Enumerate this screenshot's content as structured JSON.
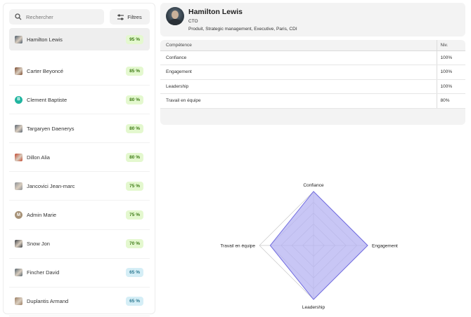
{
  "search": {
    "placeholder": "Rechercher"
  },
  "filter": {
    "label": "Filtres"
  },
  "people": [
    {
      "name": "Hamilton Lewis",
      "score": "95 %",
      "tone": "green",
      "avatar": "photo",
      "color": "#4a5a6a",
      "selected": true
    },
    {
      "name": "Carter Beyoncé",
      "score": "85 %",
      "tone": "green",
      "avatar": "photo",
      "color": "#7a4a2e"
    },
    {
      "name": "Clement Baptiste",
      "score": "80 %",
      "tone": "green",
      "avatar": "B",
      "color": "#21b5a0"
    },
    {
      "name": "Targaryen Daenerys",
      "score": "80 %",
      "tone": "green",
      "avatar": "photo",
      "color": "#5a6572"
    },
    {
      "name": "Dillon Alia",
      "score": "80 %",
      "tone": "green",
      "avatar": "photo",
      "color": "#c2462c"
    },
    {
      "name": "Jancovici Jean-marc",
      "score": "75 %",
      "tone": "green",
      "avatar": "photo",
      "color": "#8a8f95"
    },
    {
      "name": "Admin Marie",
      "score": "75 %",
      "tone": "green",
      "avatar": "M",
      "color": "#a79277"
    },
    {
      "name": "Snow Jon",
      "score": "70 %",
      "tone": "green",
      "avatar": "photo",
      "color": "#3a3e44"
    },
    {
      "name": "Fincher David",
      "score": "65 %",
      "tone": "blue",
      "avatar": "photo",
      "color": "#55646e"
    },
    {
      "name": "Duplantis Armand",
      "score": "65 %",
      "tone": "blue",
      "avatar": "photo",
      "color": "#9a7d62"
    }
  ],
  "profile": {
    "name": "Hamilton Lewis",
    "role": "CTO",
    "tags": "Produit, Strategic management, Executive, Paris, CDI"
  },
  "skills": {
    "header_skill": "Compétence",
    "header_level": "Niv.",
    "rows": [
      {
        "skill": "Confiance",
        "level": "100%"
      },
      {
        "skill": "Engagement",
        "level": "100%"
      },
      {
        "skill": "Leadership",
        "level": "100%"
      },
      {
        "skill": "Travail en équipe",
        "level": "80%"
      }
    ]
  },
  "colors": {
    "radar_fill": "#b5b3f2",
    "radar_stroke": "#6f6ae0",
    "green_badge": "#e4f8cf",
    "blue_badge": "#d5eef6"
  },
  "chart_data": {
    "type": "radar",
    "axes": [
      "Confiance",
      "Engagement",
      "Leadership",
      "Travail en équipe"
    ],
    "values": [
      100,
      100,
      100,
      80
    ],
    "range": [
      0,
      100
    ],
    "rings": 5
  }
}
